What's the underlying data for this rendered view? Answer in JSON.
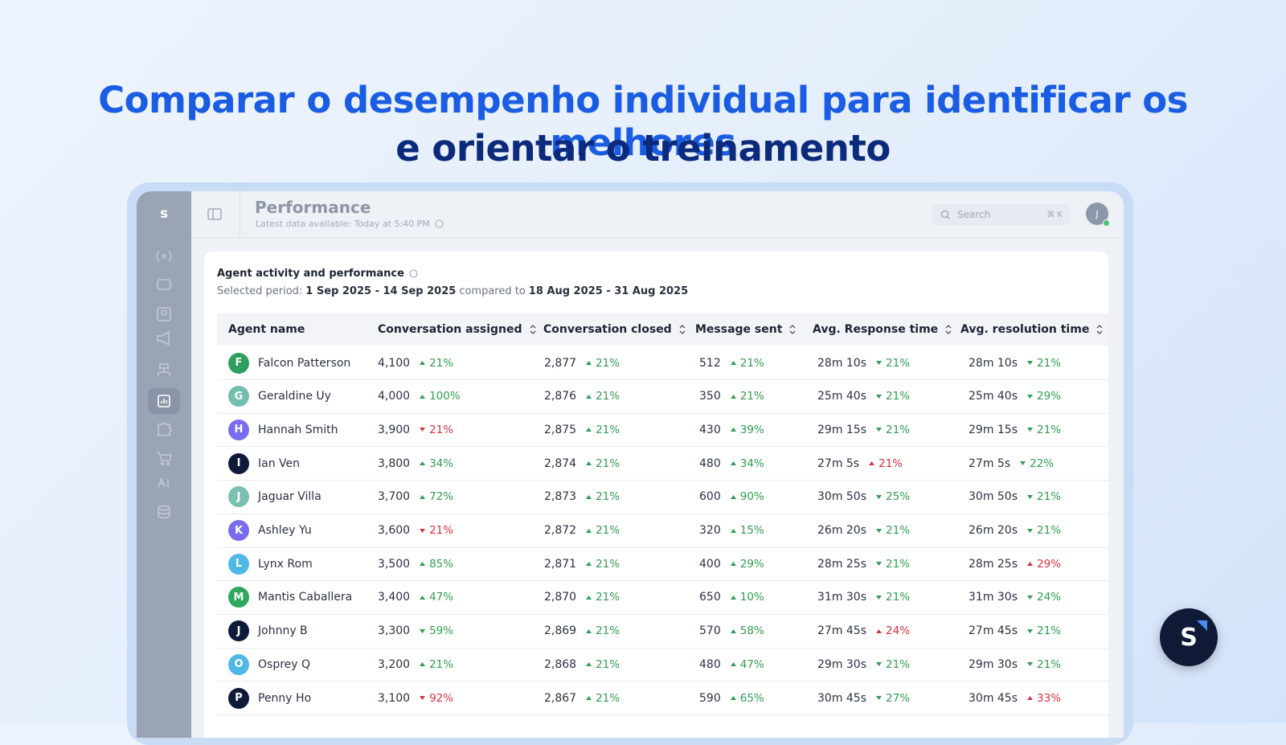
{
  "headline": [
    "Comparar o desempenho individual para identificar os melhores",
    "e orientar o treinamento"
  ],
  "app": {
    "logo": "s",
    "title": "Performance",
    "subtitle": "Latest data available: Today at 5:40 PM",
    "search": "Search",
    "shortcut": "⌘ K",
    "user_initial": "J",
    "fab_logo": "S"
  },
  "card": {
    "title": "Agent activity and performance",
    "period_label": "Selected period:",
    "period": "1 Sep 2025 - 14 Sep 2025",
    "compared": "compared to",
    "compare_period": "18 Aug 2025 - 31 Aug 2025"
  },
  "table": {
    "columns": [
      "Agent name",
      "Conversation assigned",
      "Conversation closed",
      "Message sent",
      "Avg. Response time",
      "Avg. resolution time"
    ],
    "rows": [
      {
        "initial": "F",
        "avatar_color": "#2f9e5c",
        "name": "Falcon Patterson",
        "cells": [
          {
            "value": "4,100",
            "change": "21%",
            "trend": "up",
            "status": "positive"
          },
          {
            "value": "2,877",
            "change": "21%",
            "trend": "up",
            "status": "positive"
          },
          {
            "value": "512",
            "change": "21%",
            "trend": "up",
            "status": "positive"
          },
          {
            "value": "28m 10s",
            "change": "21%",
            "trend": "down",
            "status": "positive"
          },
          {
            "value": "28m 10s",
            "change": "21%",
            "trend": "down",
            "status": "positive"
          }
        ]
      },
      {
        "initial": "G",
        "avatar_color": "#72bfae",
        "name": "Geraldine Uy",
        "cells": [
          {
            "value": "4,000",
            "change": "100%",
            "trend": "up",
            "status": "positive"
          },
          {
            "value": "2,876",
            "change": "21%",
            "trend": "up",
            "status": "positive"
          },
          {
            "value": "350",
            "change": "21%",
            "trend": "up",
            "status": "positive"
          },
          {
            "value": "25m 40s",
            "change": "21%",
            "trend": "down",
            "status": "positive"
          },
          {
            "value": "25m 40s",
            "change": "29%",
            "trend": "down",
            "status": "positive"
          }
        ]
      },
      {
        "initial": "H",
        "avatar_color": "#7a6cf0",
        "name": "Hannah Smith",
        "cells": [
          {
            "value": "3,900",
            "change": "21%",
            "trend": "down",
            "status": "negative"
          },
          {
            "value": "2,875",
            "change": "21%",
            "trend": "up",
            "status": "positive"
          },
          {
            "value": "430",
            "change": "39%",
            "trend": "up",
            "status": "positive"
          },
          {
            "value": "29m 15s",
            "change": "21%",
            "trend": "down",
            "status": "positive"
          },
          {
            "value": "29m 15s",
            "change": "21%",
            "trend": "down",
            "status": "positive"
          }
        ]
      },
      {
        "initial": "I",
        "avatar_color": "#0f1a3a",
        "name": "Ian Ven",
        "cells": [
          {
            "value": "3,800",
            "change": "34%",
            "trend": "up",
            "status": "positive"
          },
          {
            "value": "2,874",
            "change": "21%",
            "trend": "up",
            "status": "positive"
          },
          {
            "value": "480",
            "change": "34%",
            "trend": "up",
            "status": "positive"
          },
          {
            "value": "27m 5s",
            "change": "21%",
            "trend": "up",
            "status": "negative"
          },
          {
            "value": "27m 5s",
            "change": "22%",
            "trend": "down",
            "status": "positive"
          }
        ]
      },
      {
        "initial": "J",
        "avatar_color": "#7cc0b1",
        "name": "Jaguar Villa",
        "cells": [
          {
            "value": "3,700",
            "change": "72%",
            "trend": "up",
            "status": "positive"
          },
          {
            "value": "2,873",
            "change": "21%",
            "trend": "up",
            "status": "positive"
          },
          {
            "value": "600",
            "change": "90%",
            "trend": "up",
            "status": "positive"
          },
          {
            "value": "30m 50s",
            "change": "25%",
            "trend": "down",
            "status": "positive"
          },
          {
            "value": "30m 50s",
            "change": "21%",
            "trend": "down",
            "status": "positive"
          }
        ]
      },
      {
        "initial": "K",
        "avatar_color": "#7a6cf0",
        "name": "Ashley Yu",
        "cells": [
          {
            "value": "3,600",
            "change": "21%",
            "trend": "down",
            "status": "negative"
          },
          {
            "value": "2,872",
            "change": "21%",
            "trend": "up",
            "status": "positive"
          },
          {
            "value": "320",
            "change": "15%",
            "trend": "up",
            "status": "positive"
          },
          {
            "value": "26m 20s",
            "change": "21%",
            "trend": "down",
            "status": "positive"
          },
          {
            "value": "26m 20s",
            "change": "21%",
            "trend": "down",
            "status": "positive"
          }
        ]
      },
      {
        "initial": "L",
        "avatar_color": "#4fb8e6",
        "name": "Lynx Rom",
        "cells": [
          {
            "value": "3,500",
            "change": "85%",
            "trend": "up",
            "status": "positive"
          },
          {
            "value": "2,871",
            "change": "21%",
            "trend": "up",
            "status": "positive"
          },
          {
            "value": "400",
            "change": "29%",
            "trend": "up",
            "status": "positive"
          },
          {
            "value": "28m 25s",
            "change": "21%",
            "trend": "down",
            "status": "positive"
          },
          {
            "value": "28m 25s",
            "change": "29%",
            "trend": "up",
            "status": "negative"
          }
        ]
      },
      {
        "initial": "M",
        "avatar_color": "#2ea85e",
        "name": "Mantis Caballera",
        "cells": [
          {
            "value": "3,400",
            "change": "47%",
            "trend": "up",
            "status": "positive"
          },
          {
            "value": "2,870",
            "change": "21%",
            "trend": "up",
            "status": "positive"
          },
          {
            "value": "650",
            "change": "10%",
            "trend": "up",
            "status": "positive"
          },
          {
            "value": "31m 30s",
            "change": "21%",
            "trend": "down",
            "status": "positive"
          },
          {
            "value": "31m 30s",
            "change": "24%",
            "trend": "down",
            "status": "positive"
          }
        ]
      },
      {
        "initial": "J",
        "avatar_color": "#0f1a3a",
        "name": "Johnny B",
        "cells": [
          {
            "value": "3,300",
            "change": "59%",
            "trend": "down",
            "status": "positive"
          },
          {
            "value": "2,869",
            "change": "21%",
            "trend": "up",
            "status": "positive"
          },
          {
            "value": "570",
            "change": "58%",
            "trend": "up",
            "status": "positive"
          },
          {
            "value": "27m 45s",
            "change": "24%",
            "trend": "up",
            "status": "negative"
          },
          {
            "value": "27m 45s",
            "change": "21%",
            "trend": "down",
            "status": "positive"
          }
        ]
      },
      {
        "initial": "O",
        "avatar_color": "#4fb8e6",
        "name": "Osprey Q",
        "cells": [
          {
            "value": "3,200",
            "change": "21%",
            "trend": "up",
            "status": "positive"
          },
          {
            "value": "2,868",
            "change": "21%",
            "trend": "up",
            "status": "positive"
          },
          {
            "value": "480",
            "change": "47%",
            "trend": "up",
            "status": "positive"
          },
          {
            "value": "29m 30s",
            "change": "21%",
            "trend": "down",
            "status": "positive"
          },
          {
            "value": "29m 30s",
            "change": "21%",
            "trend": "down",
            "status": "positive"
          }
        ]
      },
      {
        "initial": "P",
        "avatar_color": "#0f1a3a",
        "name": "Penny Ho",
        "cells": [
          {
            "value": "3,100",
            "change": "92%",
            "trend": "down",
            "status": "negative"
          },
          {
            "value": "2,867",
            "change": "21%",
            "trend": "up",
            "status": "positive"
          },
          {
            "value": "590",
            "change": "65%",
            "trend": "up",
            "status": "positive"
          },
          {
            "value": "30m 45s",
            "change": "27%",
            "trend": "down",
            "status": "positive"
          },
          {
            "value": "30m 45s",
            "change": "33%",
            "trend": "up",
            "status": "negative"
          }
        ]
      }
    ]
  }
}
